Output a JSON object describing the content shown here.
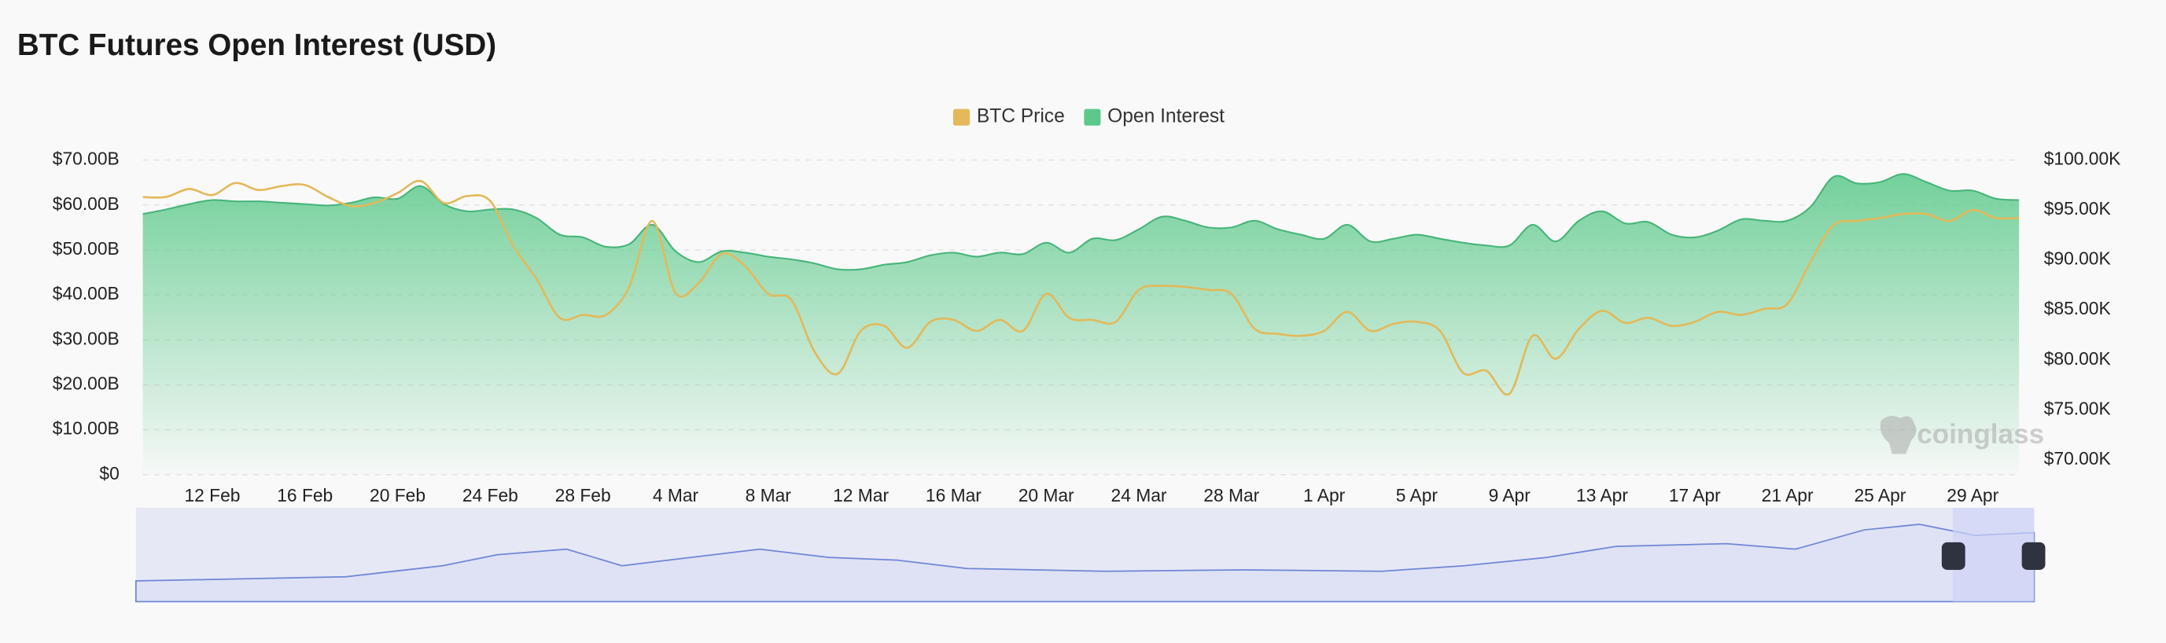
{
  "chart_data": {
    "type": "line",
    "title": "BTC Futures Open Interest (USD)",
    "watermark": "coinglass",
    "categories": [
      null,
      null,
      null,
      "12 Feb",
      null,
      null,
      null,
      "16 Feb",
      null,
      null,
      null,
      "20 Feb",
      null,
      null,
      null,
      "24 Feb",
      null,
      null,
      null,
      "28 Feb",
      null,
      null,
      null,
      "4 Mar",
      null,
      null,
      null,
      "8 Mar",
      null,
      null,
      null,
      "12 Mar",
      null,
      null,
      null,
      "16 Mar",
      null,
      null,
      null,
      "20 Mar",
      null,
      null,
      null,
      "24 Mar",
      null,
      null,
      null,
      "28 Mar",
      null,
      null,
      null,
      "1 Apr",
      null,
      null,
      null,
      "5 Apr",
      null,
      null,
      null,
      "9 Apr",
      null,
      null,
      null,
      "13 Apr",
      null,
      null,
      null,
      "17 Apr",
      null,
      null,
      null,
      "21 Apr",
      null,
      null,
      null,
      "25 Apr",
      null,
      null,
      null,
      "29 Apr",
      null,
      null
    ],
    "series": [
      {
        "name": "BTC Price",
        "color": "#e3b95a",
        "axis": "y2",
        "values": [
          96.3,
          96.3,
          97.1,
          96.5,
          97.7,
          97.0,
          97.4,
          97.5,
          96.3,
          95.4,
          95.7,
          96.7,
          97.9,
          95.7,
          96.4,
          95.9,
          91.4,
          88.1,
          84.2,
          84.5,
          84.5,
          87.3,
          93.9,
          86.7,
          87.7,
          90.6,
          89.4,
          86.6,
          86.0,
          80.8,
          78.6,
          82.9,
          83.4,
          81.2,
          83.8,
          84.0,
          82.9,
          84.0,
          82.9,
          86.6,
          84.2,
          84.0,
          83.8,
          87.0,
          87.4,
          87.3,
          87.0,
          86.6,
          83.1,
          82.6,
          82.4,
          82.9,
          84.8,
          82.9,
          83.6,
          83.8,
          82.9,
          78.7,
          78.9,
          76.6,
          82.4,
          80.1,
          83.1,
          84.9,
          83.7,
          84.2,
          83.4,
          83.8,
          84.8,
          84.5,
          85.1,
          85.6,
          89.8,
          93.5,
          93.9,
          94.2,
          94.6,
          94.6,
          93.9,
          95.0,
          94.2,
          94.2
        ]
      },
      {
        "name": "Open Interest",
        "color": "#5cc98a",
        "values": [
          58.0,
          59.0,
          60.2,
          61.1,
          60.8,
          60.8,
          60.5,
          60.2,
          59.9,
          60.5,
          61.7,
          61.4,
          64.2,
          60.2,
          58.6,
          59.0,
          59.0,
          57.1,
          53.4,
          52.8,
          50.7,
          51.3,
          55.6,
          49.7,
          47.3,
          49.7,
          49.4,
          48.5,
          47.9,
          47.0,
          45.7,
          45.7,
          46.7,
          47.3,
          48.8,
          49.4,
          48.5,
          49.4,
          49.1,
          51.6,
          49.4,
          52.5,
          52.2,
          54.6,
          57.4,
          56.5,
          55.0,
          55.0,
          56.5,
          54.6,
          53.4,
          52.5,
          55.6,
          51.9,
          52.5,
          53.4,
          52.5,
          51.6,
          51.0,
          51.0,
          55.6,
          51.9,
          56.5,
          58.6,
          55.9,
          56.2,
          53.4,
          52.8,
          54.3,
          56.8,
          56.5,
          56.5,
          59.6,
          66.3,
          64.8,
          65.1,
          66.9,
          65.1,
          63.2,
          63.2,
          61.4,
          61.1
        ]
      }
    ],
    "ylim": [
      0,
      70
    ],
    "yticks": [
      {
        "value": 0,
        "label": "$0"
      },
      {
        "value": 10,
        "label": "$10.00B"
      },
      {
        "value": 20,
        "label": "$20.00B"
      },
      {
        "value": 30,
        "label": "$30.00B"
      },
      {
        "value": 40,
        "label": "$40.00B"
      },
      {
        "value": 50,
        "label": "$50.00B"
      },
      {
        "value": 60,
        "label": "$60.00B"
      },
      {
        "value": 70,
        "label": "$70.00B"
      }
    ],
    "y2lim": [
      68.5,
      100
    ],
    "y2ticks": [
      {
        "value": 70,
        "label": "$70.00K"
      },
      {
        "value": 75,
        "label": "$75.00K"
      },
      {
        "value": 80,
        "label": "$80.00K"
      },
      {
        "value": 85,
        "label": "$85.00K"
      },
      {
        "value": 90,
        "label": "$90.00K"
      },
      {
        "value": 95,
        "label": "$95.00K"
      },
      {
        "value": 100,
        "label": "$100.00K"
      }
    ],
    "grid": true,
    "legend": "top"
  }
}
